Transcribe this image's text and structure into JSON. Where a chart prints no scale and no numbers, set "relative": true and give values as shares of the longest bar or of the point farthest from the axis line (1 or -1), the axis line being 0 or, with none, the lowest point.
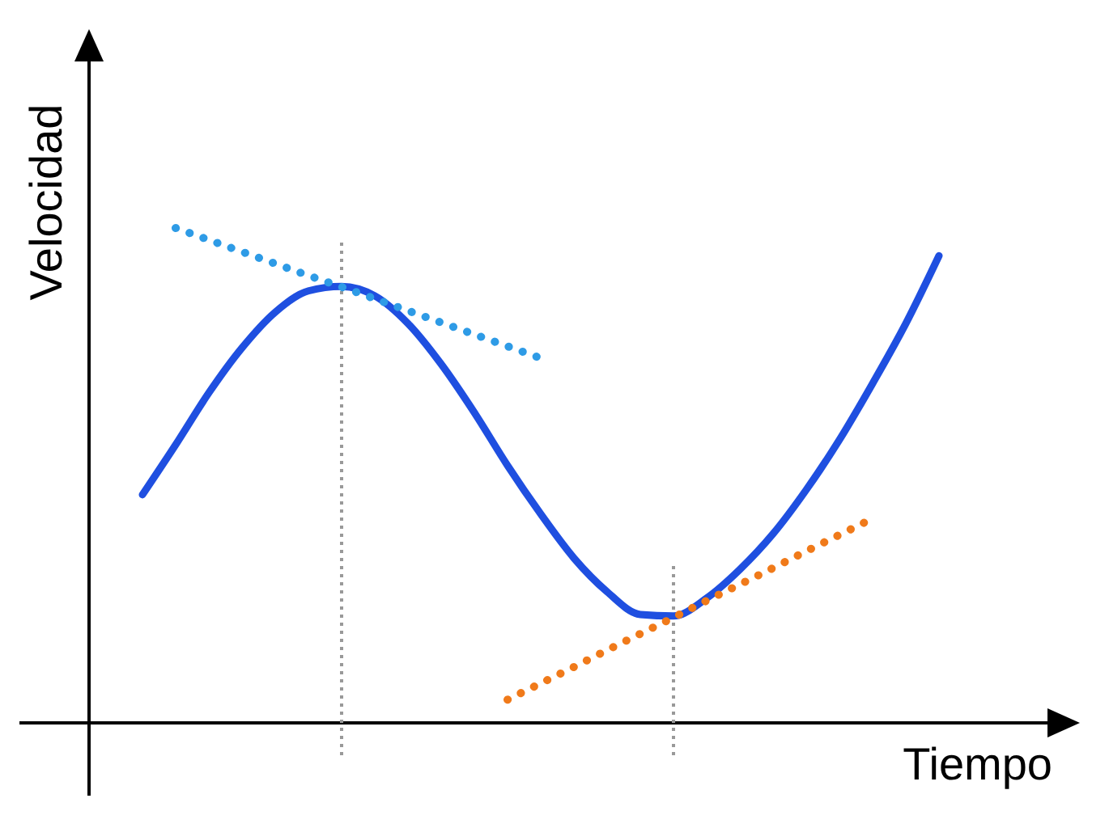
{
  "chart_data": {
    "type": "line",
    "relative": true,
    "xlabel": "Tiempo",
    "ylabel": "Velocidad",
    "marker": "none",
    "tick_labels": false,
    "categories": [
      null,
      null,
      null,
      null,
      null,
      null,
      null,
      null,
      null,
      null,
      null,
      null,
      null,
      null,
      null,
      null,
      null,
      null,
      null,
      null,
      null,
      null,
      null,
      null,
      null
    ],
    "series": [
      {
        "color": "#1f4fe0",
        "line_style": "solid",
        "values": [
          0.461,
          0.562,
          0.667,
          0.758,
          0.83,
          0.873,
          0.882,
          0.863,
          0.807,
          0.725,
          0.627,
          0.52,
          0.422,
          0.333,
          0.265,
          0.219,
          0.216,
          0.252,
          0.31,
          0.382,
          0.471,
          0.572,
          0.686,
          0.807,
          0.944
        ]
      },
      {
        "color": "#2e9be6",
        "line_style": "dotted",
        "values": [
          null,
          1.0,
          0.976,
          0.952,
          0.928,
          0.904,
          0.881,
          0.857,
          0.833,
          0.809,
          0.785,
          0.761,
          0.737,
          null,
          null,
          null,
          null,
          null,
          null,
          null,
          null,
          null,
          null,
          null,
          null
        ]
      },
      {
        "color": "#f07a1a",
        "line_style": "dotted",
        "values": [
          null,
          null,
          null,
          null,
          null,
          null,
          null,
          null,
          null,
          null,
          null,
          0.047,
          0.08,
          0.113,
          0.147,
          0.18,
          0.213,
          0.247,
          0.28,
          0.313,
          0.347,
          0.38,
          0.413,
          null,
          null
        ]
      }
    ]
  }
}
